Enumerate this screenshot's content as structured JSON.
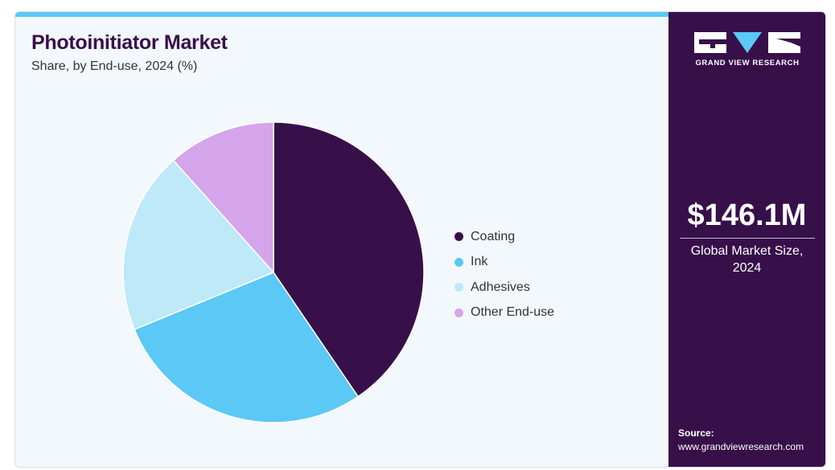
{
  "header": {
    "title": "Photoinitiator Market",
    "subtitle": "Share, by End-use, 2024 (%)"
  },
  "chart_data": {
    "type": "pie",
    "title": "Photoinitiator Market",
    "subtitle": "Share, by End-use, 2024 (%)",
    "categories": [
      "Coating",
      "Ink",
      "Adhesives",
      "Other End-use"
    ],
    "values": [
      40.5,
      28.3,
      19.6,
      11.6
    ],
    "colors": [
      "#37104a",
      "#5bc8f5",
      "#bde9f9",
      "#d4a5ea"
    ],
    "legend_position": "right"
  },
  "sidebar": {
    "logo_text": "GRAND VIEW RESEARCH",
    "market_size": "$146.1M",
    "market_label": "Global Market Size, 2024",
    "source_label": "Source:",
    "source_url": "www.grandviewresearch.com"
  }
}
